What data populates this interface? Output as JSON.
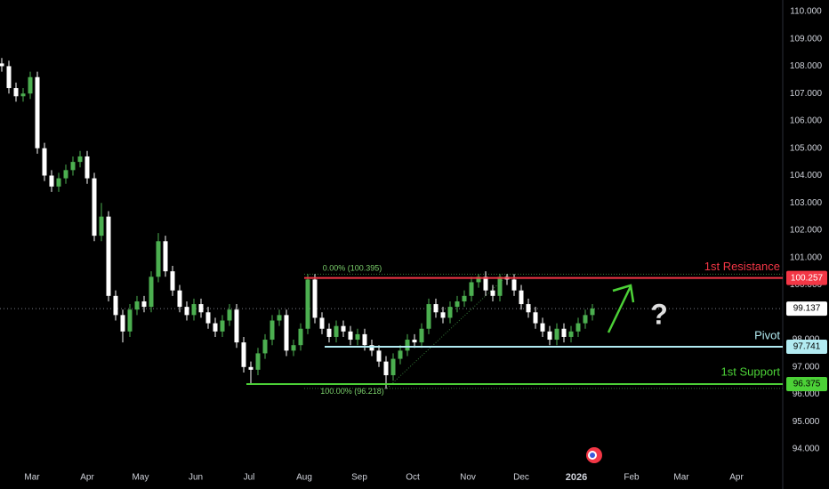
{
  "chart_data": {
    "type": "candlestick",
    "x": [
      42,
      46,
      50,
      54,
      58,
      62,
      66,
      70,
      74,
      78,
      82,
      86,
      90,
      94,
      98,
      102,
      106,
      110,
      114,
      118,
      122,
      126,
      130,
      134,
      138,
      142,
      146,
      150,
      154,
      158,
      162,
      166,
      170,
      174,
      178,
      182,
      186,
      190,
      194,
      198,
      202,
      206,
      210,
      214,
      218,
      222,
      226,
      230,
      234,
      238,
      242,
      246,
      250,
      254,
      258,
      262,
      266,
      270,
      274,
      278,
      282,
      286,
      290,
      294,
      298,
      302,
      306,
      310,
      314,
      318,
      322,
      326,
      330,
      334,
      338,
      342,
      346,
      350,
      354,
      358,
      362,
      366,
      370,
      374
    ],
    "open": [
      108.1,
      108.0,
      107.2,
      106.9,
      107.0,
      107.6,
      105.0,
      104.0,
      103.6,
      103.9,
      104.2,
      104.5,
      104.7,
      103.9,
      101.8,
      102.5,
      99.6,
      98.9,
      98.3,
      99.1,
      99.4,
      99.2,
      100.3,
      101.6,
      100.5,
      99.8,
      99.2,
      98.9,
      99.3,
      99.0,
      98.6,
      98.3,
      98.7,
      99.1,
      97.9,
      97.0,
      96.9,
      97.5,
      98.0,
      98.7,
      98.9,
      97.6,
      97.8,
      98.4,
      100.2,
      98.8,
      98.4,
      98.1,
      98.5,
      98.3,
      98.0,
      98.2,
      97.8,
      97.6,
      97.2,
      96.7,
      97.3,
      97.6,
      98.0,
      97.9,
      98.4,
      99.3,
      99.0,
      98.8,
      99.2,
      99.4,
      99.6,
      100.1,
      100.3,
      99.8,
      99.6,
      100.3,
      100.2,
      99.8,
      99.3,
      99.0,
      98.6,
      98.3,
      98.0,
      98.4,
      98.1,
      98.3,
      98.6,
      98.9
    ],
    "high": [
      108.3,
      108.2,
      107.4,
      107.2,
      107.8,
      107.8,
      105.2,
      104.2,
      104.1,
      104.4,
      104.7,
      104.9,
      104.9,
      104.1,
      103.0,
      102.7,
      99.8,
      99.1,
      99.3,
      99.6,
      99.6,
      100.5,
      101.9,
      101.8,
      100.7,
      100.0,
      99.4,
      99.5,
      99.5,
      99.2,
      98.8,
      98.9,
      99.3,
      99.3,
      98.1,
      97.2,
      97.7,
      98.2,
      98.9,
      99.1,
      99.1,
      98.0,
      98.6,
      100.4,
      100.4,
      99.0,
      98.6,
      98.7,
      98.7,
      98.5,
      98.4,
      98.4,
      98.0,
      97.8,
      97.4,
      97.5,
      97.8,
      98.2,
      98.2,
      98.6,
      99.5,
      99.5,
      99.2,
      99.4,
      99.6,
      99.8,
      100.3,
      100.4,
      100.5,
      100.0,
      100.4,
      100.4,
      100.4,
      100.0,
      99.5,
      99.2,
      98.8,
      98.5,
      98.6,
      98.6,
      98.5,
      98.8,
      99.1,
      99.3
    ],
    "low": [
      107.8,
      107.0,
      106.7,
      106.7,
      106.8,
      104.8,
      103.8,
      103.4,
      103.4,
      103.7,
      104.0,
      104.3,
      103.7,
      101.6,
      101.6,
      99.4,
      98.7,
      97.9,
      98.1,
      98.9,
      99.0,
      99.0,
      100.1,
      100.3,
      99.6,
      99.0,
      98.7,
      98.7,
      98.8,
      98.4,
      98.1,
      98.1,
      98.5,
      97.7,
      96.8,
      96.4,
      96.7,
      97.3,
      97.8,
      98.5,
      97.4,
      97.4,
      97.6,
      98.2,
      98.6,
      98.2,
      97.9,
      97.9,
      98.1,
      97.8,
      97.8,
      97.6,
      97.4,
      97.0,
      96.2,
      96.5,
      97.1,
      97.4,
      97.7,
      97.7,
      98.2,
      98.8,
      98.6,
      98.6,
      99.0,
      99.2,
      99.4,
      99.9,
      99.6,
      99.4,
      99.4,
      100.0,
      99.6,
      99.1,
      98.8,
      98.4,
      98.1,
      97.8,
      97.8,
      97.9,
      97.9,
      98.1,
      98.4,
      98.7
    ],
    "close": [
      108.0,
      107.2,
      106.9,
      107.0,
      107.6,
      105.0,
      104.0,
      103.6,
      103.9,
      104.2,
      104.5,
      104.7,
      103.9,
      101.8,
      102.5,
      99.6,
      98.9,
      98.3,
      99.1,
      99.4,
      99.2,
      100.3,
      101.6,
      100.5,
      99.8,
      99.2,
      98.9,
      99.3,
      99.0,
      98.6,
      98.3,
      98.7,
      99.1,
      97.9,
      97.0,
      96.9,
      97.5,
      98.0,
      98.7,
      98.9,
      97.6,
      97.8,
      98.4,
      100.2,
      98.8,
      98.4,
      98.1,
      98.5,
      98.3,
      98.0,
      98.2,
      97.8,
      97.6,
      97.2,
      96.7,
      97.3,
      97.6,
      98.0,
      97.9,
      98.4,
      99.3,
      99.0,
      98.8,
      99.2,
      99.4,
      99.6,
      100.1,
      100.3,
      99.8,
      99.6,
      100.3,
      100.2,
      99.8,
      99.3,
      99.0,
      98.6,
      98.3,
      98.0,
      98.4,
      98.1,
      98.3,
      98.6,
      98.9,
      99.137
    ],
    "up_color": "#4caf50",
    "down_color": "#ffffff",
    "xlim": [
      41,
      481
    ],
    "xticks": [
      {
        "value": 59,
        "label": "Mar"
      },
      {
        "value": 90,
        "label": "Apr"
      },
      {
        "value": 120,
        "label": "May"
      },
      {
        "value": 151,
        "label": "Jun"
      },
      {
        "value": 181,
        "label": "Jul"
      },
      {
        "value": 212,
        "label": "Aug"
      },
      {
        "value": 243,
        "label": "Sep"
      },
      {
        "value": 273,
        "label": "Oct"
      },
      {
        "value": 304,
        "label": "Nov"
      },
      {
        "value": 334,
        "label": "Dec"
      },
      {
        "value": 365,
        "label": "2026"
      },
      {
        "value": 396,
        "label": "Feb"
      },
      {
        "value": 424,
        "label": "Mar"
      },
      {
        "value": 455,
        "label": "Apr"
      }
    ],
    "ylim": [
      93.45,
      110.42
    ],
    "yticks": [
      {
        "value": 94,
        "label": "94.000"
      },
      {
        "value": 95,
        "label": "95.000"
      },
      {
        "value": 96,
        "label": "96.000"
      },
      {
        "value": 97,
        "label": "97.000"
      },
      {
        "value": 98,
        "label": "98.000"
      },
      {
        "value": 100,
        "label": "100.000"
      },
      {
        "value": 101,
        "label": "101.000"
      },
      {
        "value": 102,
        "label": "102.000"
      },
      {
        "value": 103,
        "label": "103.000"
      },
      {
        "value": 104,
        "label": "104.000"
      },
      {
        "value": 105,
        "label": "105.000"
      },
      {
        "value": 106,
        "label": "106.000"
      },
      {
        "value": 107,
        "label": "107.000"
      },
      {
        "value": 108,
        "label": "108.000"
      },
      {
        "value": 109,
        "label": "109.000"
      },
      {
        "value": 110,
        "label": "110.000"
      }
    ],
    "levels": [
      {
        "name": "1st Resistance",
        "value": 100.257,
        "color": "#f23645"
      },
      {
        "name": "Pivot",
        "value": 97.741,
        "color": "#b2ebf2"
      },
      {
        "name": "1st Support",
        "value": 96.375,
        "color": "#4cd137"
      }
    ],
    "last_price": 99.137,
    "fib_levels": [
      {
        "value": 100.395,
        "label": "0.00% (100.395)"
      },
      {
        "value": 96.218,
        "label": "100.00% (96.218)"
      }
    ],
    "annotation": "?"
  }
}
